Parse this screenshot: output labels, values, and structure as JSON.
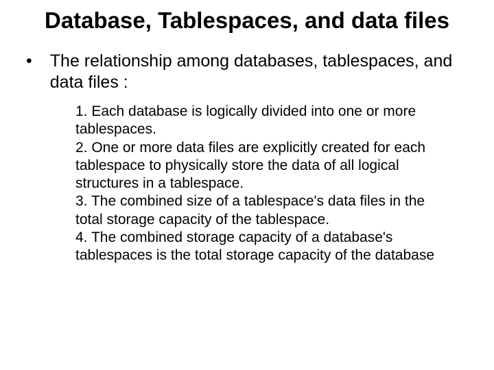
{
  "title": "Database, Tablespaces, and data files",
  "bullet_char": "•",
  "intro_text": "The relationship among databases, tablespaces, and data files :",
  "points": {
    "p1": "1. Each database is logically divided into one or more tablespaces.",
    "p2": "2. One or more data files are explicitly created for each tablespace to physically store the data of all logical structures in a tablespace.",
    "p3": "3. The combined size of a tablespace's data files in the total storage capacity of the tablespace.",
    "p4": "4. The combined storage capacity of a database's tablespaces is the total storage capacity of the database"
  },
  "colors": {
    "background": "#ffffff",
    "text": "#000000"
  },
  "typography": {
    "title_fontsize": 33,
    "title_weight": "bold",
    "intro_fontsize": 25,
    "body_fontsize": 21,
    "font_family": "Arial"
  }
}
